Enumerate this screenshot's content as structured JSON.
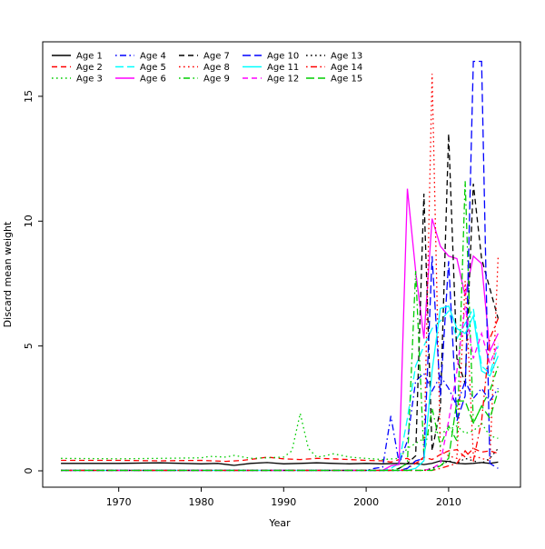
{
  "figure": {
    "background": "#ffffff",
    "box_color": "#000000"
  },
  "chart_data": {
    "type": "line",
    "title": "",
    "xlabel": "Year",
    "ylabel": "Discard mean weight",
    "x_ticks": [
      1970,
      1980,
      1990,
      2000,
      2010
    ],
    "y_ticks": [
      0,
      5,
      10,
      15
    ],
    "xlim": [
      1960.9,
      2018.7
    ],
    "ylim": [
      -0.66,
      17.1
    ],
    "grid": "off",
    "legend_position": "top-left-inside",
    "legend_columns": 5,
    "series": [
      {
        "name": "Age 1",
        "color": "#000000",
        "linetype": "solid",
        "points": [
          [
            1963,
            0.3
          ],
          [
            1970,
            0.3
          ],
          [
            1975,
            0.32
          ],
          [
            1980,
            0.28
          ],
          [
            1982,
            0.3
          ],
          [
            1984,
            0.22
          ],
          [
            1986,
            0.3
          ],
          [
            1988,
            0.33
          ],
          [
            1990,
            0.28
          ],
          [
            1992,
            0.3
          ],
          [
            1994,
            0.32
          ],
          [
            1996,
            0.3
          ],
          [
            1998,
            0.28
          ],
          [
            2000,
            0.3
          ],
          [
            2002,
            0.28
          ],
          [
            2004,
            0.3
          ],
          [
            2005,
            0.28
          ],
          [
            2006,
            0.3
          ],
          [
            2007,
            0.25
          ],
          [
            2008,
            0.3
          ],
          [
            2009,
            0.4
          ],
          [
            2010,
            0.38
          ],
          [
            2011,
            0.3
          ],
          [
            2012,
            0.28
          ],
          [
            2013,
            0.3
          ],
          [
            2014,
            0.33
          ],
          [
            2015,
            0.3
          ],
          [
            2016,
            0.35
          ]
        ]
      },
      {
        "name": "Age 2",
        "color": "#ff0000",
        "linetype": "dashed",
        "points": [
          [
            1963,
            0.42
          ],
          [
            1970,
            0.42
          ],
          [
            1975,
            0.4
          ],
          [
            1980,
            0.42
          ],
          [
            1983,
            0.38
          ],
          [
            1985,
            0.42
          ],
          [
            1987,
            0.5
          ],
          [
            1988,
            0.55
          ],
          [
            1990,
            0.48
          ],
          [
            1992,
            0.45
          ],
          [
            1994,
            0.5
          ],
          [
            1996,
            0.48
          ],
          [
            1998,
            0.45
          ],
          [
            2000,
            0.42
          ],
          [
            2002,
            0.4
          ],
          [
            2003,
            0.35
          ],
          [
            2004,
            0.45
          ],
          [
            2005,
            0.5
          ],
          [
            2006,
            0.3
          ],
          [
            2007,
            0.55
          ],
          [
            2008,
            0.45
          ],
          [
            2009,
            0.65
          ],
          [
            2010,
            0.8
          ],
          [
            2011,
            0.85
          ],
          [
            2012,
            0.55
          ],
          [
            2013,
            0.9
          ],
          [
            2014,
            0.75
          ],
          [
            2015,
            0.8
          ],
          [
            2016,
            0.7
          ]
        ]
      },
      {
        "name": "Age 3",
        "color": "#00cd00",
        "linetype": "dotted",
        "points": [
          [
            1963,
            0.5
          ],
          [
            1970,
            0.48
          ],
          [
            1975,
            0.5
          ],
          [
            1980,
            0.52
          ],
          [
            1981,
            0.58
          ],
          [
            1983,
            0.55
          ],
          [
            1984,
            0.62
          ],
          [
            1986,
            0.5
          ],
          [
            1988,
            0.52
          ],
          [
            1990,
            0.55
          ],
          [
            1991,
            0.8
          ],
          [
            1992,
            2.3
          ],
          [
            1993,
            0.9
          ],
          [
            1994,
            0.55
          ],
          [
            1995,
            0.6
          ],
          [
            1996,
            0.68
          ],
          [
            1997,
            0.62
          ],
          [
            1998,
            0.55
          ],
          [
            2000,
            0.5
          ],
          [
            2002,
            0.45
          ],
          [
            2004,
            0.5
          ],
          [
            2005,
            0.9
          ],
          [
            2006,
            1.1
          ],
          [
            2007,
            1.3
          ],
          [
            2008,
            1.6
          ],
          [
            2009,
            1.5
          ],
          [
            2010,
            1.65
          ],
          [
            2011,
            1.8
          ],
          [
            2012,
            1.5
          ],
          [
            2013,
            1.6
          ],
          [
            2014,
            1.9
          ],
          [
            2015,
            1.4
          ],
          [
            2016,
            1.3
          ]
        ]
      },
      {
        "name": "Age 4",
        "color": "#0000ff",
        "linetype": "dotdash",
        "points": [
          [
            1963,
            0.02
          ],
          [
            2000,
            0.02
          ],
          [
            2001,
            0.1
          ],
          [
            2002,
            0.15
          ],
          [
            2003,
            2.2
          ],
          [
            2004,
            0.3
          ],
          [
            2005,
            1.2
          ],
          [
            2006,
            3.6
          ],
          [
            2007,
            3.9
          ],
          [
            2008,
            3.2
          ],
          [
            2009,
            3.8
          ],
          [
            2010,
            3.3
          ],
          [
            2011,
            2.6
          ],
          [
            2012,
            3.6
          ],
          [
            2013,
            2.9
          ],
          [
            2014,
            3.3
          ],
          [
            2015,
            2.8
          ],
          [
            2016,
            3.3
          ]
        ]
      },
      {
        "name": "Age 5",
        "color": "#00ffff",
        "linetype": "longdash",
        "points": [
          [
            1963,
            0.02
          ],
          [
            2002,
            0.02
          ],
          [
            2003,
            0.1
          ],
          [
            2004,
            0.3
          ],
          [
            2005,
            2.1
          ],
          [
            2006,
            4.2
          ],
          [
            2007,
            5.0
          ],
          [
            2008,
            5.7
          ],
          [
            2009,
            6.0
          ],
          [
            2010,
            6.4
          ],
          [
            2011,
            5.3
          ],
          [
            2012,
            5.9
          ],
          [
            2013,
            6.5
          ],
          [
            2014,
            4.2
          ],
          [
            2015,
            3.9
          ],
          [
            2016,
            5.0
          ]
        ]
      },
      {
        "name": "Age 6",
        "color": "#ff00ff",
        "linetype": "solid",
        "points": [
          [
            1963,
            0.02
          ],
          [
            2002,
            0.02
          ],
          [
            2003,
            0.2
          ],
          [
            2004,
            0.25
          ],
          [
            2005,
            11.3
          ],
          [
            2006,
            8.0
          ],
          [
            2007,
            5.3
          ],
          [
            2008,
            10.1
          ],
          [
            2009,
            9.0
          ],
          [
            2010,
            8.6
          ],
          [
            2011,
            8.5
          ],
          [
            2012,
            7.0
          ],
          [
            2013,
            8.6
          ],
          [
            2014,
            8.3
          ],
          [
            2015,
            4.8
          ],
          [
            2016,
            5.5
          ]
        ]
      },
      {
        "name": "Age 7",
        "color": "#000000",
        "linetype": "dashed",
        "points": [
          [
            1963,
            0.02
          ],
          [
            2003,
            0.02
          ],
          [
            2004,
            0.1
          ],
          [
            2005,
            0.3
          ],
          [
            2006,
            0.6
          ],
          [
            2007,
            11.1
          ],
          [
            2008,
            0.8
          ],
          [
            2009,
            2.5
          ],
          [
            2010,
            13.5
          ],
          [
            2011,
            4.5
          ],
          [
            2012,
            3.5
          ],
          [
            2013,
            11.5
          ],
          [
            2014,
            8.5
          ],
          [
            2015,
            7.3
          ],
          [
            2016,
            6.1
          ]
        ]
      },
      {
        "name": "Age 8",
        "color": "#ff0000",
        "linetype": "dotted",
        "points": [
          [
            1963,
            0.02
          ],
          [
            2004,
            0.02
          ],
          [
            2005,
            0.1
          ],
          [
            2006,
            0.3
          ],
          [
            2007,
            0.5
          ],
          [
            2008,
            15.9
          ],
          [
            2009,
            0.8
          ],
          [
            2010,
            0.6
          ],
          [
            2011,
            0.5
          ],
          [
            2012,
            7.6
          ],
          [
            2013,
            0.6
          ],
          [
            2014,
            0.5
          ],
          [
            2015,
            0.4
          ],
          [
            2016,
            8.6
          ]
        ]
      },
      {
        "name": "Age 9",
        "color": "#00cd00",
        "linetype": "dotdash",
        "points": [
          [
            1963,
            0.02
          ],
          [
            2003,
            0.02
          ],
          [
            2004,
            0.1
          ],
          [
            2005,
            0.3
          ],
          [
            2006,
            8.0
          ],
          [
            2007,
            0.6
          ],
          [
            2008,
            2.5
          ],
          [
            2009,
            1.0
          ],
          [
            2010,
            1.8
          ],
          [
            2011,
            1.2
          ],
          [
            2012,
            11.6
          ],
          [
            2013,
            1.9
          ],
          [
            2014,
            2.6
          ],
          [
            2015,
            3.2
          ],
          [
            2016,
            4.2
          ]
        ]
      },
      {
        "name": "Age 10",
        "color": "#0000ff",
        "linetype": "longdash",
        "points": [
          [
            1963,
            0.02
          ],
          [
            2004,
            0.02
          ],
          [
            2005,
            0.1
          ],
          [
            2006,
            0.4
          ],
          [
            2007,
            0.5
          ],
          [
            2008,
            8.6
          ],
          [
            2009,
            3.0
          ],
          [
            2010,
            8.4
          ],
          [
            2011,
            2.0
          ],
          [
            2012,
            3.0
          ],
          [
            2013,
            16.4
          ],
          [
            2014,
            16.4
          ],
          [
            2015,
            0.3
          ],
          [
            2016,
            0.1
          ]
        ]
      },
      {
        "name": "Age 11",
        "color": "#00ffff",
        "linetype": "solid",
        "points": [
          [
            1963,
            0.02
          ],
          [
            2005,
            0.02
          ],
          [
            2006,
            0.1
          ],
          [
            2007,
            0.4
          ],
          [
            2008,
            4.0
          ],
          [
            2009,
            6.5
          ],
          [
            2010,
            6.6
          ],
          [
            2011,
            5.7
          ],
          [
            2012,
            5.5
          ],
          [
            2013,
            6.2
          ],
          [
            2014,
            4.0
          ],
          [
            2015,
            3.8
          ],
          [
            2016,
            4.6
          ]
        ]
      },
      {
        "name": "Age 12",
        "color": "#ff00ff",
        "linetype": "dashed",
        "points": [
          [
            1963,
            0.02
          ],
          [
            2007,
            0.02
          ],
          [
            2008,
            0.1
          ],
          [
            2009,
            0.3
          ],
          [
            2010,
            2.0
          ],
          [
            2011,
            4.0
          ],
          [
            2012,
            6.6
          ],
          [
            2013,
            4.5
          ],
          [
            2014,
            5.5
          ],
          [
            2015,
            4.3
          ],
          [
            2016,
            5.1
          ]
        ]
      },
      {
        "name": "Age 13",
        "color": "#000000",
        "linetype": "dotted",
        "points": [
          [
            1963,
            0.02
          ],
          [
            2007,
            0.02
          ],
          [
            2008,
            0.1
          ],
          [
            2009,
            0.2
          ],
          [
            2010,
            0.4
          ],
          [
            2011,
            0.3
          ],
          [
            2012,
            0.5
          ],
          [
            2013,
            0.4
          ],
          [
            2014,
            0.3
          ],
          [
            2015,
            0.5
          ],
          [
            2016,
            0.9
          ]
        ]
      },
      {
        "name": "Age 14",
        "color": "#ff0000",
        "linetype": "dotdash",
        "points": [
          [
            1963,
            0.02
          ],
          [
            2008,
            0.02
          ],
          [
            2009,
            0.1
          ],
          [
            2010,
            0.2
          ],
          [
            2011,
            0.3
          ],
          [
            2012,
            0.8
          ],
          [
            2013,
            0.4
          ],
          [
            2014,
            2.0
          ],
          [
            2015,
            5.3
          ],
          [
            2016,
            6.1
          ]
        ]
      },
      {
        "name": "Age 15",
        "color": "#00cd00",
        "linetype": "longdash",
        "points": [
          [
            1963,
            0.02
          ],
          [
            2008,
            0.02
          ],
          [
            2009,
            0.2
          ],
          [
            2010,
            0.5
          ],
          [
            2011,
            2.8
          ],
          [
            2012,
            2.8
          ],
          [
            2013,
            1.9
          ],
          [
            2014,
            2.6
          ],
          [
            2015,
            2.1
          ],
          [
            2016,
            3.2
          ]
        ]
      }
    ]
  }
}
